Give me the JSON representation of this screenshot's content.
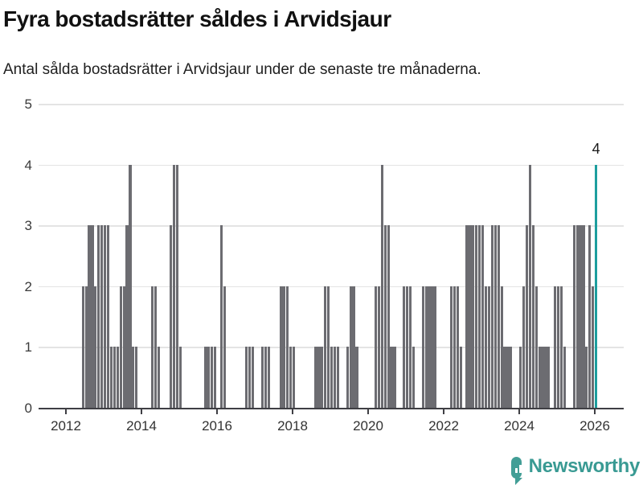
{
  "header": {
    "title": "Fyra bostadsrätter såldes i Arvidsjaur",
    "subtitle": "Antal sålda bostadsrätter i Arvidsjaur under de senaste tre månaderna."
  },
  "branding": {
    "name": "Newsworthy"
  },
  "colors": {
    "bar": "#6c6c71",
    "highlight": "#1d9e9e",
    "grid": "#e4e4e4",
    "axis": "#3f3f44",
    "tick_text": "#333333",
    "title_text": "#111111",
    "brand_teal": "#399a93",
    "icon_teal": "#429e96"
  },
  "chart_data": {
    "type": "bar",
    "title": "Fyra bostadsrätter såldes i Arvidsjaur",
    "subtitle": "Antal sålda bostadsrätter i Arvidsjaur under de senaste tre månaderna.",
    "xlabel": "",
    "ylabel": "",
    "ylim": [
      0,
      5
    ],
    "yticks": [
      0,
      1,
      2,
      3,
      4,
      5
    ],
    "x_tick_years": [
      2012,
      2014,
      2016,
      2018,
      2020,
      2022,
      2024,
      2026
    ],
    "frequency": "monthly",
    "x_start": "2012-01",
    "x_end": "2026-01",
    "grid": true,
    "legend": false,
    "values": [
      0,
      0,
      0,
      0,
      0,
      2,
      2,
      3,
      3,
      2,
      3,
      3,
      3,
      3,
      1,
      1,
      1,
      2,
      2,
      3,
      4,
      1,
      1,
      0,
      0,
      0,
      0,
      2,
      2,
      1,
      0,
      0,
      0,
      3,
      4,
      4,
      1,
      0,
      0,
      0,
      0,
      0,
      0,
      0,
      1,
      1,
      1,
      1,
      0,
      3,
      2,
      0,
      0,
      0,
      0,
      0,
      0,
      1,
      1,
      1,
      0,
      0,
      1,
      1,
      1,
      0,
      0,
      0,
      2,
      2,
      2,
      1,
      1,
      0,
      0,
      0,
      0,
      0,
      0,
      1,
      1,
      1,
      2,
      2,
      1,
      1,
      1,
      0,
      0,
      1,
      2,
      2,
      1,
      0,
      0,
      0,
      0,
      0,
      2,
      2,
      4,
      3,
      3,
      1,
      1,
      0,
      0,
      2,
      2,
      2,
      1,
      0,
      0,
      2,
      2,
      2,
      2,
      2,
      0,
      0,
      0,
      0,
      2,
      2,
      2,
      1,
      0,
      3,
      3,
      3,
      3,
      3,
      3,
      2,
      2,
      3,
      3,
      3,
      2,
      1,
      1,
      1,
      0,
      0,
      1,
      2,
      3,
      4,
      3,
      2,
      1,
      1,
      1,
      1,
      0,
      2,
      2,
      2,
      1,
      0,
      0,
      3,
      3,
      3,
      3,
      1,
      3,
      2,
      4
    ],
    "highlight": {
      "index": 168,
      "month": "2026-01",
      "value": 4,
      "label": "4"
    }
  }
}
